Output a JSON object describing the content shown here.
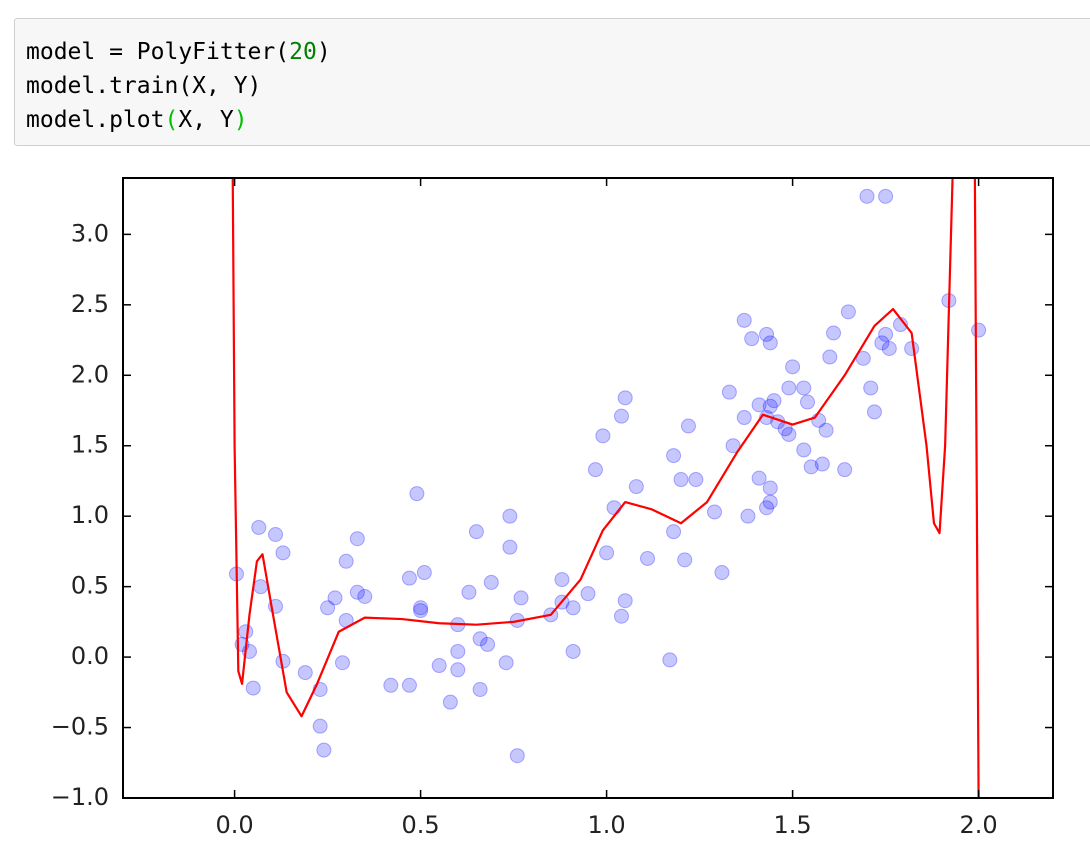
{
  "code": {
    "lines": [
      [
        "model = PolyFitter(",
        "20",
        ")"
      ],
      [
        "model.train(X, Y)"
      ],
      [
        "model.plot",
        "(",
        "X, Y",
        ")"
      ]
    ]
  },
  "chart_data": {
    "type": "scatter",
    "xlim": [
      -0.3,
      2.2
    ],
    "ylim": [
      -1.0,
      3.4
    ],
    "xticks": [
      {
        "value": 0,
        "label": "0.0"
      },
      0.5,
      {
        "value": 1,
        "label": "1.0"
      },
      1.5,
      {
        "value": 2,
        "label": "2.0"
      }
    ],
    "yticks": [
      {
        "value": -1,
        "label": "−1.0"
      },
      {
        "value": -0.5,
        "label": "−0.5"
      },
      {
        "value": 0,
        "label": "0.0"
      },
      0.5,
      {
        "value": 1,
        "label": "1.0"
      },
      1.5,
      {
        "value": 2,
        "label": "2.0"
      },
      2.5,
      {
        "value": 3,
        "label": "3.0"
      }
    ],
    "series": [
      {
        "type": "scatter",
        "color": "#0000ff",
        "x": [
          0.005,
          0.02,
          0.03,
          0.04,
          0.05,
          0.065,
          0.07,
          0.11,
          0.11,
          0.13,
          0.13,
          0.19,
          0.23,
          0.23,
          0.24,
          0.25,
          0.27,
          0.29,
          0.3,
          0.3,
          0.33,
          0.33,
          0.35,
          0.42,
          0.47,
          0.47,
          0.49,
          0.5,
          0.5,
          0.51,
          0.55,
          0.58,
          0.6,
          0.6,
          0.6,
          0.63,
          0.65,
          0.66,
          0.66,
          0.68,
          0.69,
          0.73,
          0.74,
          0.74,
          0.76,
          0.76,
          0.77,
          0.85,
          0.88,
          0.88,
          0.91,
          0.91,
          0.95,
          0.97,
          0.99,
          1.0,
          1.02,
          1.04,
          1.04,
          1.05,
          1.05,
          1.08,
          1.11,
          1.18,
          1.17,
          1.18,
          1.2,
          1.21,
          1.22,
          1.24,
          1.29,
          1.31,
          1.33,
          1.34,
          1.37,
          1.37,
          1.38,
          1.39,
          1.41,
          1.41,
          1.43,
          1.43,
          1.43,
          1.44,
          1.44,
          1.44,
          1.44,
          1.45,
          1.46,
          1.48,
          1.49,
          1.49,
          1.5,
          1.53,
          1.53,
          1.54,
          1.55,
          1.57,
          1.58,
          1.59,
          1.6,
          1.61,
          1.64,
          1.65,
          1.69,
          1.7,
          1.71,
          1.72,
          1.74,
          1.75,
          1.75,
          1.76,
          1.79,
          1.82,
          1.92,
          2.0
        ],
        "values": [
          0.59,
          0.09,
          0.18,
          0.04,
          -0.22,
          0.92,
          0.5,
          0.87,
          0.36,
          0.74,
          -0.03,
          -0.11,
          -0.23,
          -0.49,
          -0.66,
          0.35,
          0.42,
          -0.04,
          0.68,
          0.26,
          0.84,
          0.46,
          0.43,
          -0.2,
          -0.2,
          0.56,
          1.16,
          0.33,
          0.35,
          0.6,
          -0.06,
          -0.32,
          -0.09,
          0.04,
          0.23,
          0.46,
          0.89,
          -0.23,
          0.13,
          0.09,
          0.53,
          -0.04,
          1.0,
          0.78,
          0.26,
          -0.7,
          0.42,
          0.3,
          0.39,
          0.55,
          0.04,
          0.35,
          0.45,
          1.33,
          1.57,
          0.74,
          1.06,
          1.71,
          0.29,
          0.4,
          1.84,
          1.21,
          0.7,
          0.89,
          -0.02,
          1.43,
          1.26,
          0.69,
          1.64,
          1.26,
          1.03,
          0.6,
          1.88,
          1.5,
          2.39,
          1.7,
          1.0,
          2.26,
          1.79,
          1.27,
          2.29,
          1.7,
          1.06,
          2.23,
          1.2,
          1.78,
          1.1,
          1.82,
          1.67,
          1.62,
          1.58,
          1.91,
          2.06,
          1.91,
          1.47,
          1.81,
          1.35,
          1.68,
          1.37,
          1.61,
          2.13,
          2.3,
          1.33,
          2.45,
          2.12,
          3.27,
          1.91,
          1.74,
          2.23,
          3.27,
          2.29,
          2.19,
          2.36,
          2.19,
          2.53,
          2.32
        ]
      },
      {
        "type": "line",
        "color": "#ff0000",
        "x": [
          -0.005,
          0,
          0.01,
          0.02,
          0.04,
          0.06,
          0.075,
          0.1,
          0.14,
          0.18,
          0.22,
          0.28,
          0.35,
          0.45,
          0.55,
          0.65,
          0.75,
          0.85,
          0.93,
          0.99,
          1.05,
          1.12,
          1.2,
          1.27,
          1.35,
          1.42,
          1.5,
          1.56,
          1.64,
          1.72,
          1.77,
          1.82,
          1.86,
          1.88,
          1.895,
          1.91,
          1.93,
          1.96,
          1.99,
          2.0
        ],
        "values": [
          3.4,
          1.5,
          -0.1,
          -0.19,
          0.3,
          0.68,
          0.73,
          0.35,
          -0.25,
          -0.42,
          -0.2,
          0.18,
          0.28,
          0.27,
          0.24,
          0.23,
          0.25,
          0.3,
          0.55,
          0.9,
          1.1,
          1.05,
          0.95,
          1.1,
          1.45,
          1.72,
          1.65,
          1.7,
          2.0,
          2.35,
          2.47,
          2.3,
          1.5,
          0.95,
          0.88,
          1.5,
          3.4,
          null,
          3.4,
          -1.0
        ]
      }
    ]
  }
}
